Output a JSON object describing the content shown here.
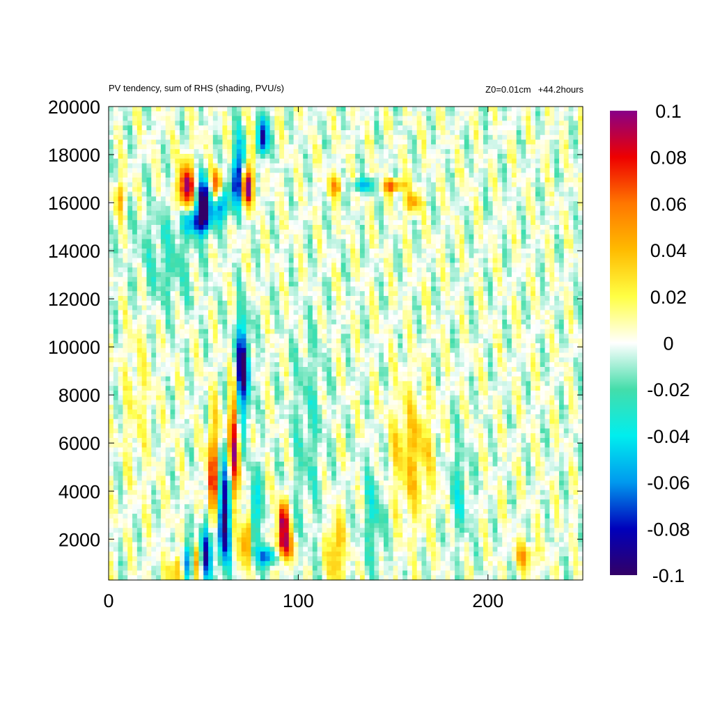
{
  "chart_data": {
    "type": "heatmap",
    "title": "PV tendency, sum of RHS (shading, PVU/s)",
    "annotation_roughness": "Z0=0.01cm",
    "annotation_time": "+44.2hours",
    "xlabel": "",
    "ylabel": "",
    "xlim": [
      0,
      250
    ],
    "ylim": [
      300,
      20000
    ],
    "x_ticks": [
      "0",
      "100",
      "200"
    ],
    "x_tick_values": [
      0,
      100,
      200
    ],
    "y_ticks": [
      "2000",
      "4000",
      "6000",
      "8000",
      "10000",
      "12000",
      "14000",
      "16000",
      "18000",
      "20000"
    ],
    "y_tick_values": [
      2000,
      4000,
      6000,
      8000,
      10000,
      12000,
      14000,
      16000,
      18000,
      20000
    ],
    "colorbar": {
      "range": [
        -0.1,
        0.1
      ],
      "ticks": [
        "0.1",
        "0.08",
        "0.06",
        "0.04",
        "0.02",
        "0",
        "-0.02",
        "-0.04",
        "-0.06",
        "-0.08",
        "-0.1"
      ],
      "tick_values": [
        0.1,
        0.08,
        0.06,
        0.04,
        0.02,
        0,
        -0.02,
        -0.04,
        -0.06,
        -0.08,
        -0.1
      ],
      "colormap": [
        {
          "v": -0.1,
          "color": "#330066"
        },
        {
          "v": -0.08,
          "color": "#0000bb"
        },
        {
          "v": -0.06,
          "color": "#0099ee"
        },
        {
          "v": -0.04,
          "color": "#00eeee"
        },
        {
          "v": -0.02,
          "color": "#44ddaa"
        },
        {
          "v": 0,
          "color": "#ffffff"
        },
        {
          "v": 0.02,
          "color": "#ffff44"
        },
        {
          "v": 0.04,
          "color": "#ffbb00"
        },
        {
          "v": 0.06,
          "color": "#ff7700"
        },
        {
          "v": 0.08,
          "color": "#ee0000"
        },
        {
          "v": 0.1,
          "color": "#880088"
        }
      ]
    },
    "grid": false,
    "features": [
      {
        "x": 70,
        "y": 9000,
        "sx": 3,
        "sy": 1500,
        "v": -0.1
      },
      {
        "x": 66,
        "y": 6000,
        "sx": 2,
        "sy": 2200,
        "v": 0.09
      },
      {
        "x": 61,
        "y": 3000,
        "sx": 3,
        "sy": 1500,
        "v": -0.1
      },
      {
        "x": 55,
        "y": 4200,
        "sx": 2,
        "sy": 1800,
        "v": 0.09
      },
      {
        "x": 51,
        "y": 1500,
        "sx": 3,
        "sy": 900,
        "v": -0.1
      },
      {
        "x": 47,
        "y": 1200,
        "sx": 2,
        "sy": 700,
        "v": 0.08
      },
      {
        "x": 41,
        "y": 1000,
        "sx": 2,
        "sy": 600,
        "v": -0.09
      },
      {
        "x": 37,
        "y": 700,
        "sx": 3,
        "sy": 500,
        "v": 0.06
      },
      {
        "x": 92,
        "y": 2600,
        "sx": 2,
        "sy": 700,
        "v": 0.1
      },
      {
        "x": 93,
        "y": 1600,
        "sx": 3,
        "sy": 400,
        "v": 0.07
      },
      {
        "x": 84,
        "y": 1300,
        "sx": 4,
        "sy": 300,
        "v": -0.07
      },
      {
        "x": 77,
        "y": 3000,
        "sx": 2,
        "sy": 1200,
        "v": -0.06
      },
      {
        "x": 73,
        "y": 2000,
        "sx": 2,
        "sy": 800,
        "v": 0.07
      },
      {
        "x": 41,
        "y": 16600,
        "sx": 3,
        "sy": 700,
        "v": 0.1
      },
      {
        "x": 50,
        "y": 16000,
        "sx": 3,
        "sy": 700,
        "v": -0.1
      },
      {
        "x": 46,
        "y": 15200,
        "sx": 6,
        "sy": 400,
        "v": -0.06
      },
      {
        "x": 57,
        "y": 16700,
        "sx": 2,
        "sy": 500,
        "v": 0.08
      },
      {
        "x": 60,
        "y": 16000,
        "sx": 3,
        "sy": 500,
        "v": -0.07
      },
      {
        "x": 68,
        "y": 16900,
        "sx": 2,
        "sy": 800,
        "v": -0.08
      },
      {
        "x": 73,
        "y": 16600,
        "sx": 2,
        "sy": 500,
        "v": 0.09
      },
      {
        "x": 81,
        "y": 18700,
        "sx": 2,
        "sy": 600,
        "v": -0.1
      },
      {
        "x": 75,
        "y": 18000,
        "sx": 2,
        "sy": 1100,
        "v": 0.05
      },
      {
        "x": 71,
        "y": 18300,
        "sx": 3,
        "sy": 800,
        "v": -0.04
      },
      {
        "x": 150,
        "y": 16700,
        "sx": 4,
        "sy": 200,
        "v": 0.07
      },
      {
        "x": 134,
        "y": 16700,
        "sx": 5,
        "sy": 200,
        "v": -0.05
      },
      {
        "x": 160,
        "y": 16000,
        "sx": 3,
        "sy": 300,
        "v": 0.05
      },
      {
        "x": 120,
        "y": 16700,
        "sx": 3,
        "sy": 300,
        "v": 0.05
      },
      {
        "x": 6,
        "y": 16200,
        "sx": 2,
        "sy": 500,
        "v": 0.04
      },
      {
        "x": 160,
        "y": 5500,
        "sx": 8,
        "sy": 1800,
        "v": 0.035
      },
      {
        "x": 220,
        "y": 1300,
        "sx": 4,
        "sy": 400,
        "v": 0.04
      },
      {
        "x": 120,
        "y": 1500,
        "sx": 3,
        "sy": 1000,
        "v": 0.045
      },
      {
        "x": 30,
        "y": 13500,
        "sx": 12,
        "sy": 1500,
        "v": -0.02
      },
      {
        "x": 15,
        "y": 8000,
        "sx": 5,
        "sy": 2500,
        "v": 0.015
      },
      {
        "x": 105,
        "y": 6500,
        "sx": 6,
        "sy": 3000,
        "v": -0.02
      },
      {
        "x": 140,
        "y": 3000,
        "sx": 4,
        "sy": 1500,
        "v": -0.03
      },
      {
        "x": 185,
        "y": 4000,
        "sx": 4,
        "sy": 1500,
        "v": -0.025
      }
    ]
  }
}
